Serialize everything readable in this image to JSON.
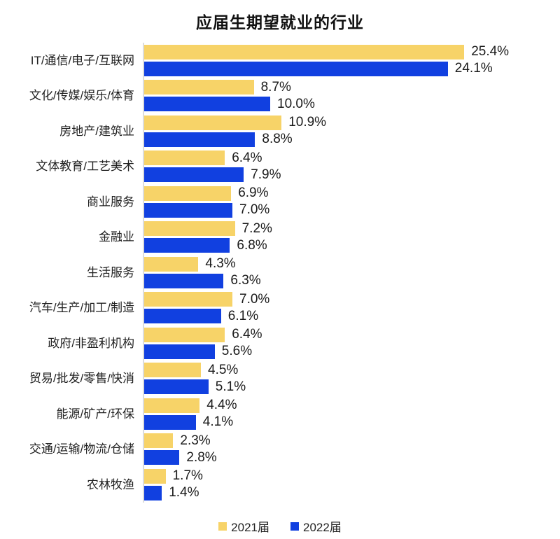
{
  "chart_data": {
    "type": "bar",
    "orientation": "horizontal",
    "title": "应届生期望就业的行业",
    "categories": [
      "IT/通信/电子/互联网",
      "文化/传媒/娱乐/体育",
      "房地产/建筑业",
      "文体教育/工艺美术",
      "商业服务",
      "金融业",
      "生活服务",
      "汽车/生产/加工/制造",
      "政府/非盈利机构",
      "贸易/批发/零售/快消",
      "能源/矿产/环保",
      "交通/运输/物流/仓储",
      "农林牧渔"
    ],
    "series": [
      {
        "name": "2021届",
        "color": "#F7D368",
        "values": [
          25.4,
          8.7,
          10.9,
          6.4,
          6.9,
          7.2,
          4.3,
          7.0,
          6.4,
          4.5,
          4.4,
          2.3,
          1.7
        ]
      },
      {
        "name": "2022届",
        "color": "#1140E0",
        "values": [
          24.1,
          10.0,
          8.8,
          7.9,
          7.0,
          6.8,
          6.3,
          6.1,
          5.6,
          5.1,
          4.1,
          2.8,
          1.4
        ]
      }
    ],
    "value_suffix": "%",
    "value_decimals": 1,
    "xlim": [
      0,
      26
    ],
    "grid": false,
    "legend_position": "bottom",
    "axis_line_color": "#dcdcdc",
    "value_label_color": "#1a1a1a",
    "category_label_color": "#1f1f1f"
  }
}
